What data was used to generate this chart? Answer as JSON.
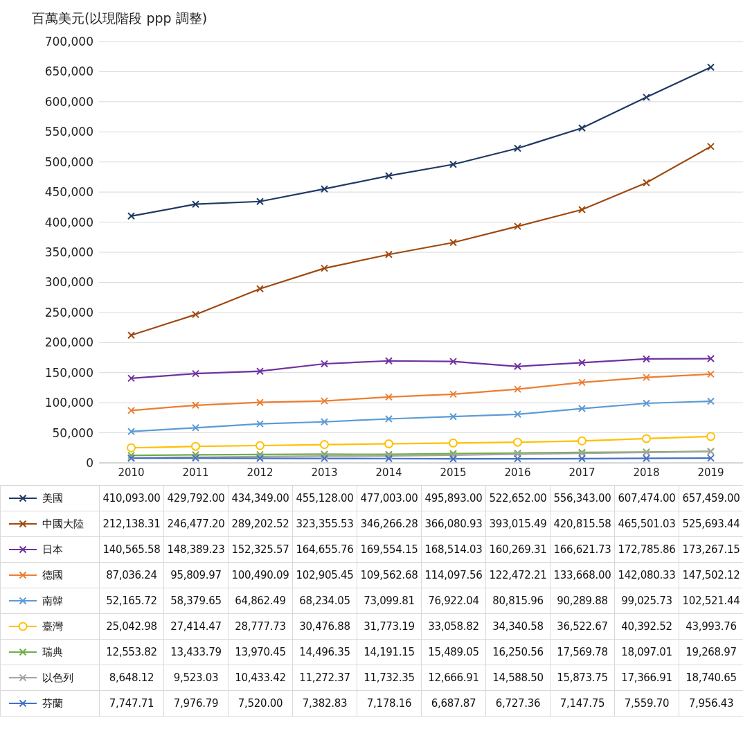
{
  "chart_data": {
    "type": "line",
    "ylabel": "百萬美元(以現階段 ppp 調整)",
    "categories": [
      "2010",
      "2011",
      "2012",
      "2013",
      "2014",
      "2015",
      "2016",
      "2017",
      "2018",
      "2019"
    ],
    "series": [
      {
        "name": "美國",
        "color": "#203864",
        "marker": "cross",
        "values": [
          410093.0,
          429792.0,
          434349.0,
          455128.0,
          477003.0,
          495893.0,
          522652.0,
          556343.0,
          607474.0,
          657459.0
        ],
        "value_labels": [
          "410,093.00",
          "429,792.00",
          "434,349.00",
          "455,128.00",
          "477,003.00",
          "495,893.00",
          "522,652.00",
          "556,343.00",
          "607,474.00",
          "657,459.00"
        ]
      },
      {
        "name": "中國大陸",
        "color": "#9e480e",
        "marker": "cross",
        "values": [
          212138.31,
          246477.2,
          289202.52,
          323355.53,
          346266.28,
          366080.93,
          393015.49,
          420815.58,
          465501.03,
          525693.44
        ],
        "value_labels": [
          "212,138.31",
          "246,477.20",
          "289,202.52",
          "323,355.53",
          "346,266.28",
          "366,080.93",
          "393,015.49",
          "420,815.58",
          "465,501.03",
          "525,693.44"
        ]
      },
      {
        "name": "日本",
        "color": "#7030a0",
        "marker": "cross",
        "values": [
          140565.58,
          148389.23,
          152325.57,
          164655.76,
          169554.15,
          168514.03,
          160269.31,
          166621.73,
          172785.86,
          173267.15
        ],
        "value_labels": [
          "140,565.58",
          "148,389.23",
          "152,325.57",
          "164,655.76",
          "169,554.15",
          "168,514.03",
          "160,269.31",
          "166,621.73",
          "172,785.86",
          "173,267.15"
        ]
      },
      {
        "name": "德國",
        "color": "#ed7d31",
        "marker": "cross",
        "values": [
          87036.24,
          95809.97,
          100490.09,
          102905.45,
          109562.68,
          114097.56,
          122472.21,
          133668.0,
          142080.33,
          147502.12
        ],
        "value_labels": [
          "87,036.24",
          "95,809.97",
          "100,490.09",
          "102,905.45",
          "109,562.68",
          "114,097.56",
          "122,472.21",
          "133,668.00",
          "142,080.33",
          "147,502.12"
        ]
      },
      {
        "name": "南韓",
        "color": "#5b9bd5",
        "marker": "cross",
        "values": [
          52165.72,
          58379.65,
          64862.49,
          68234.05,
          73099.81,
          76922.04,
          80815.96,
          90289.88,
          99025.73,
          102521.44
        ],
        "value_labels": [
          "52,165.72",
          "58,379.65",
          "64,862.49",
          "68,234.05",
          "73,099.81",
          "76,922.04",
          "80,815.96",
          "90,289.88",
          "99,025.73",
          "102,521.44"
        ]
      },
      {
        "name": "臺灣",
        "color": "#ffc000",
        "marker": "circle",
        "values": [
          25042.98,
          27414.47,
          28777.73,
          30476.88,
          31773.19,
          33058.82,
          34340.58,
          36522.67,
          40392.52,
          43993.76
        ],
        "value_labels": [
          "25,042.98",
          "27,414.47",
          "28,777.73",
          "30,476.88",
          "31,773.19",
          "33,058.82",
          "34,340.58",
          "36,522.67",
          "40,392.52",
          "43,993.76"
        ]
      },
      {
        "name": "瑞典",
        "color": "#70ad47",
        "marker": "cross",
        "values": [
          12553.82,
          13433.79,
          13970.45,
          14496.35,
          14191.15,
          15489.05,
          16250.56,
          17569.78,
          18097.01,
          19268.97
        ],
        "value_labels": [
          "12,553.82",
          "13,433.79",
          "13,970.45",
          "14,496.35",
          "14,191.15",
          "15,489.05",
          "16,250.56",
          "17,569.78",
          "18,097.01",
          "19,268.97"
        ]
      },
      {
        "name": "以色列",
        "color": "#a5a5a5",
        "marker": "cross",
        "values": [
          8648.12,
          9523.03,
          10433.42,
          11272.37,
          11732.35,
          12666.91,
          14588.5,
          15873.75,
          17366.91,
          18740.65
        ],
        "value_labels": [
          "8,648.12",
          "9,523.03",
          "10,433.42",
          "11,272.37",
          "11,732.35",
          "12,666.91",
          "14,588.50",
          "15,873.75",
          "17,366.91",
          "18,740.65"
        ]
      },
      {
        "name": "芬蘭",
        "color": "#4472c4",
        "marker": "cross",
        "values": [
          7747.71,
          7976.79,
          7520.0,
          7382.83,
          7178.16,
          6687.87,
          6727.36,
          7147.75,
          7559.7,
          7956.43
        ],
        "value_labels": [
          "7,747.71",
          "7,976.79",
          "7,520.00",
          "7,382.83",
          "7,178.16",
          "6,687.87",
          "6,727.36",
          "7,147.75",
          "7,559.70",
          "7,956.43"
        ]
      }
    ],
    "ylim": [
      0,
      700000
    ],
    "yticks": [
      {
        "value": 0,
        "label": "0"
      },
      {
        "value": 50000,
        "label": "50,000"
      },
      {
        "value": 100000,
        "label": "100,000"
      },
      {
        "value": 150000,
        "label": "150,000"
      },
      {
        "value": 200000,
        "label": "200,000"
      },
      {
        "value": 250000,
        "label": "250,000"
      },
      {
        "value": 300000,
        "label": "300,000"
      },
      {
        "value": 350000,
        "label": "350,000"
      },
      {
        "value": 400000,
        "label": "400,000"
      },
      {
        "value": 450000,
        "label": "450,000"
      },
      {
        "value": 500000,
        "label": "500,000"
      },
      {
        "value": 550000,
        "label": "550,000"
      },
      {
        "value": 600000,
        "label": "600,000"
      },
      {
        "value": 650000,
        "label": "650,000"
      },
      {
        "value": 700000,
        "label": "700,000"
      }
    ],
    "grid": "y",
    "legend": "bottom"
  }
}
